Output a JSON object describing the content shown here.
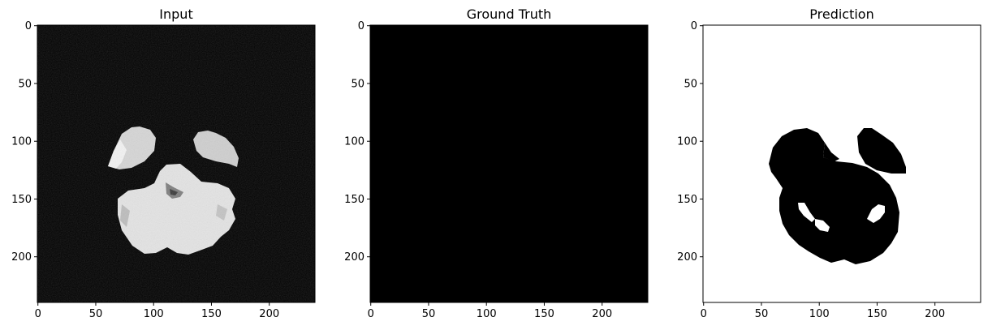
{
  "panels": [
    {
      "title": "Input"
    },
    {
      "title": "Ground Truth"
    },
    {
      "title": "Prediction"
    }
  ],
  "axes": {
    "x_ticks": [
      "0",
      "50",
      "100",
      "150",
      "200"
    ],
    "y_ticks": [
      "0",
      "50",
      "100",
      "150",
      "200"
    ]
  }
}
